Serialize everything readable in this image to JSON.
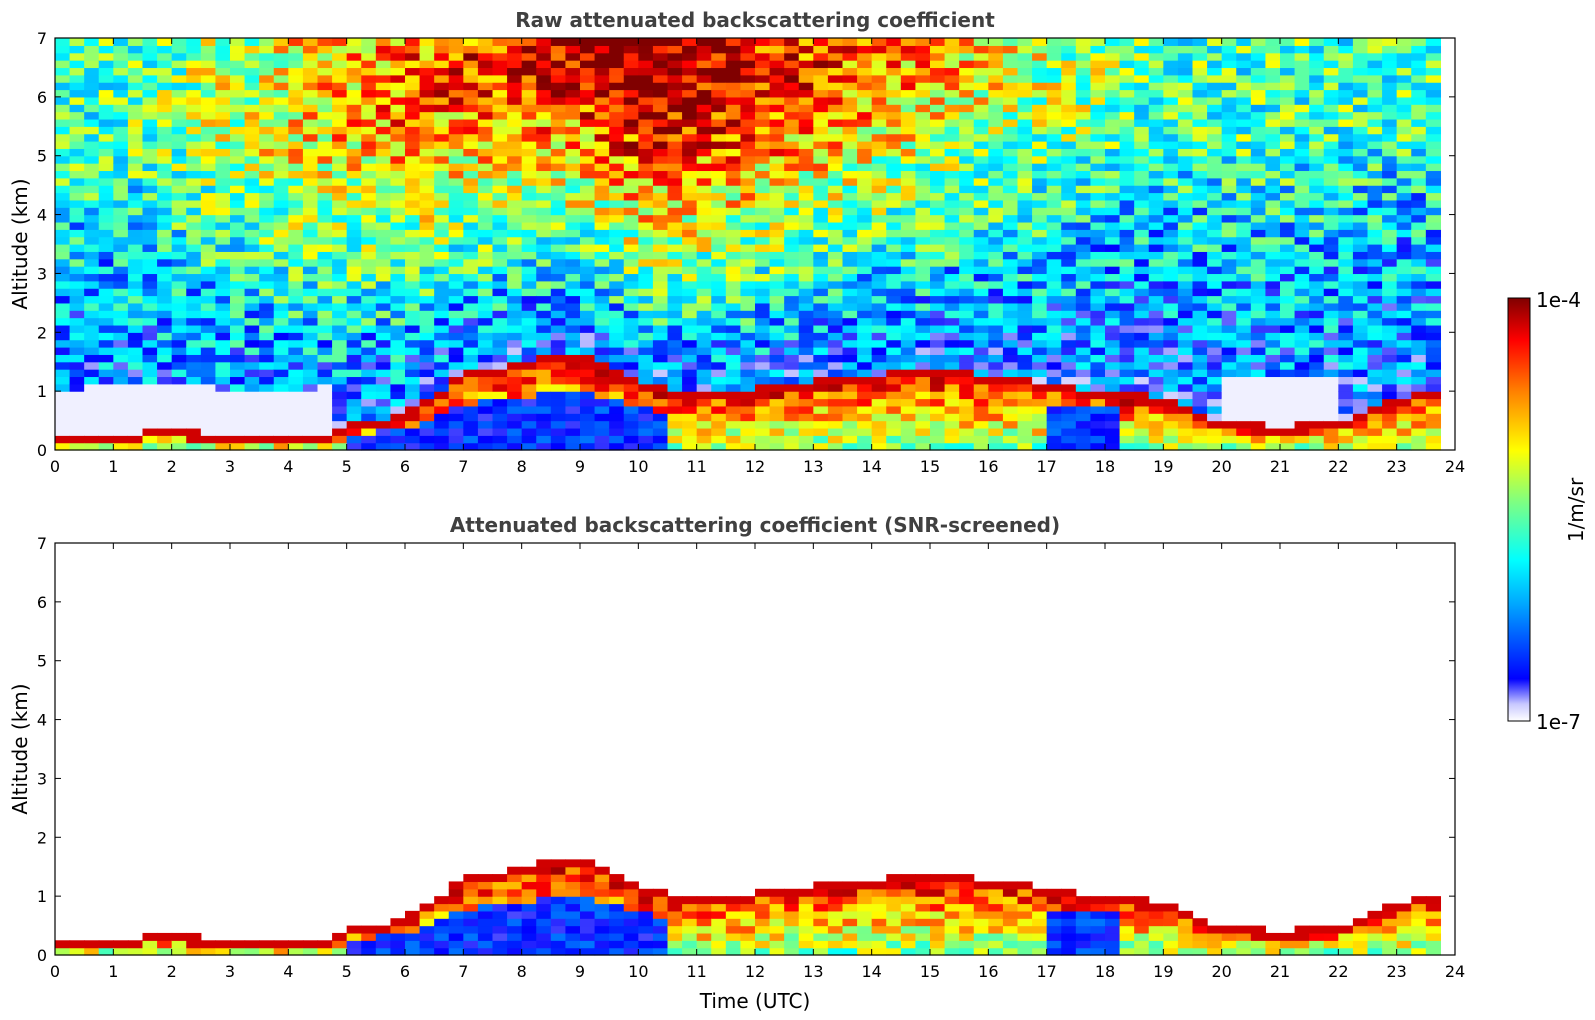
{
  "chart_data": [
    {
      "type": "heatmap",
      "title": "Raw attenuated backscattering coefficient",
      "xlabel": "",
      "ylabel": "Altitude (km)",
      "xlim": [
        0,
        24
      ],
      "ylim": [
        0,
        7
      ],
      "xticks": [
        "0",
        "1",
        "2",
        "3",
        "4",
        "5",
        "6",
        "7",
        "8",
        "9",
        "10",
        "11",
        "12",
        "13",
        "14",
        "15",
        "16",
        "17",
        "18",
        "19",
        "20",
        "21",
        "22",
        "23",
        "24"
      ],
      "yticks": [
        "0",
        "1",
        "2",
        "3",
        "4",
        "5",
        "6",
        "7"
      ],
      "grid": false,
      "layer_top_km": [
        [
          0,
          0.25
        ],
        [
          1,
          0.28
        ],
        [
          2,
          0.35
        ],
        [
          3,
          0.25
        ],
        [
          4,
          0.2
        ],
        [
          4.8,
          0.3
        ],
        [
          5,
          0.45
        ],
        [
          6,
          0.6
        ],
        [
          7,
          1.3
        ],
        [
          8,
          1.5
        ],
        [
          9,
          1.7
        ],
        [
          10,
          1.2
        ],
        [
          10.5,
          1.05
        ],
        [
          11,
          1.0
        ],
        [
          12,
          1.05
        ],
        [
          13,
          1.2
        ],
        [
          14,
          1.3
        ],
        [
          15,
          1.35
        ],
        [
          16,
          1.3
        ],
        [
          17,
          1.15
        ],
        [
          18,
          1.0
        ],
        [
          19,
          0.9
        ],
        [
          20,
          0.5
        ],
        [
          21,
          0.4
        ],
        [
          22,
          0.5
        ],
        [
          23,
          0.9
        ],
        [
          23.8,
          1.05
        ]
      ]
    },
    {
      "type": "heatmap",
      "title": "Attenuated backscattering coefficient (SNR-screened)",
      "xlabel": "Time (UTC)",
      "ylabel": "Altitude (km)",
      "xlim": [
        0,
        24
      ],
      "ylim": [
        0,
        7
      ],
      "xticks": [
        "0",
        "1",
        "2",
        "3",
        "4",
        "5",
        "6",
        "7",
        "8",
        "9",
        "10",
        "11",
        "12",
        "13",
        "14",
        "15",
        "16",
        "17",
        "18",
        "19",
        "20",
        "21",
        "22",
        "23",
        "24"
      ],
      "yticks": [
        "0",
        "1",
        "2",
        "3",
        "4",
        "5",
        "6",
        "7"
      ],
      "grid": false,
      "layer_top_km": [
        [
          0,
          0.25
        ],
        [
          1,
          0.28
        ],
        [
          2,
          0.35
        ],
        [
          3,
          0.25
        ],
        [
          4,
          0.2
        ],
        [
          4.8,
          0.3
        ],
        [
          5,
          0.45
        ],
        [
          6,
          0.6
        ],
        [
          7,
          1.3
        ],
        [
          8,
          1.5
        ],
        [
          9,
          1.7
        ],
        [
          10,
          1.2
        ],
        [
          10.5,
          1.05
        ],
        [
          11,
          1.0
        ],
        [
          12,
          1.05
        ],
        [
          13,
          1.2
        ],
        [
          14,
          1.3
        ],
        [
          15,
          1.35
        ],
        [
          16,
          1.3
        ],
        [
          17,
          1.15
        ],
        [
          18,
          1.0
        ],
        [
          19,
          0.9
        ],
        [
          20,
          0.5
        ],
        [
          21,
          0.4
        ],
        [
          22,
          0.5
        ],
        [
          23,
          0.9
        ],
        [
          23.8,
          1.05
        ]
      ]
    }
  ],
  "colorbar": {
    "label": "1/m/sr",
    "max_label": "1e-4",
    "min_label": "1e-7",
    "colormap": [
      "#ffffff",
      "#c8c8ff",
      "#0000ff",
      "#00aaff",
      "#00ffff",
      "#80ff80",
      "#ffff00",
      "#ff8000",
      "#ff0000",
      "#800000"
    ]
  },
  "colors": {
    "title_text": "#404040",
    "axes": "#000000"
  }
}
